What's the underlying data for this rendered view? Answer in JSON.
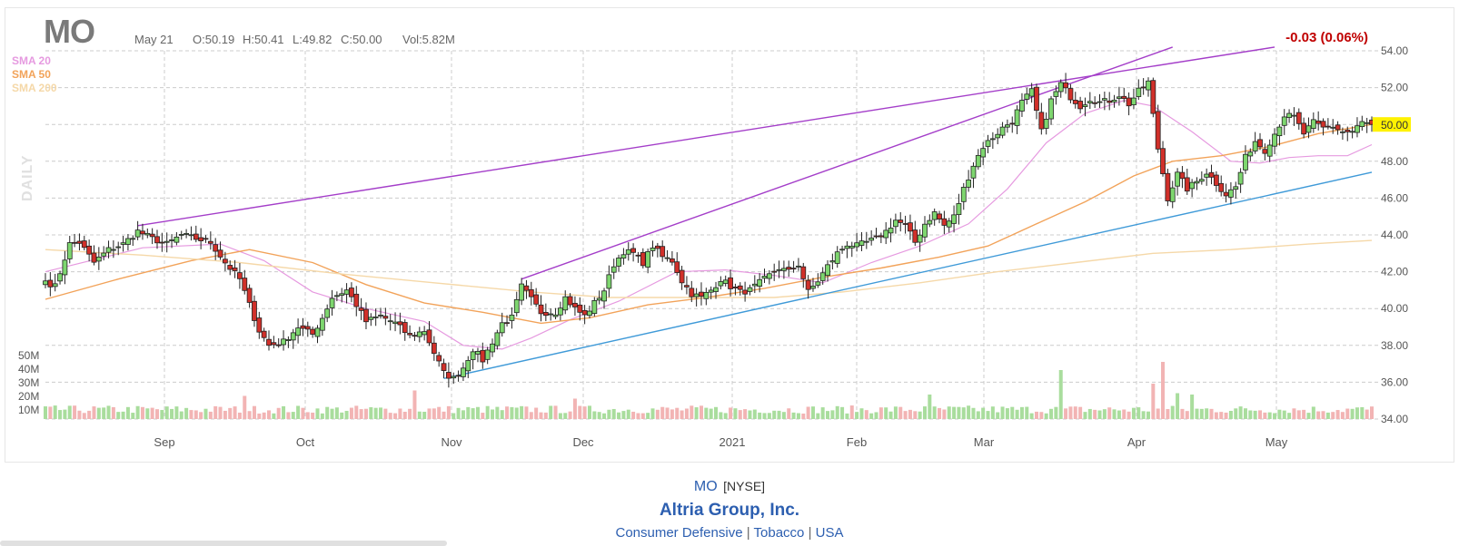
{
  "header": {
    "ticker": "MO",
    "date": "May 21",
    "open": "O:50.19",
    "high": "H:50.41",
    "low": "L:49.82",
    "close": "C:50.00",
    "volume": "Vol:5.82M",
    "change": "-0.03 (0.06%)",
    "timeframe": "DAILY"
  },
  "legend": [
    {
      "label": "SMA 20",
      "color": "#e69ae0"
    },
    {
      "label": "SMA 50",
      "color": "#f2a35a"
    },
    {
      "label": "SMA 200",
      "color": "#f5d8a8"
    }
  ],
  "footer": {
    "symbol": "MO",
    "exchange": "[NYSE]",
    "company": "Altria Group, Inc.",
    "sector": "Consumer Defensive",
    "industry": "Tobacco",
    "country": "USA",
    "separator": "|"
  },
  "colors": {
    "up": "#7ed66f",
    "down": "#d1302a",
    "vol_up": "#a9dd9d",
    "vol_down": "#f2b4b4",
    "trendline_purple": "#a43ec9",
    "trendline_blue": "#3f9ad8",
    "grid": "#cccccc",
    "last_price_bg": "#fff200"
  },
  "chart_data": {
    "type": "candlestick",
    "y_axis_ticks": [
      "54.00",
      "52.00",
      "50.00",
      "48.00",
      "46.00",
      "44.00",
      "42.00",
      "40.00",
      "38.00",
      "36.00",
      "34.00"
    ],
    "ylim": [
      34,
      54
    ],
    "volume_ticks": [
      "50M",
      "40M",
      "30M",
      "20M",
      "10M"
    ],
    "x_axis_ticks": [
      {
        "label": "Sep",
        "date": "2020-09-01"
      },
      {
        "label": "Oct",
        "date": "2020-10-01"
      },
      {
        "label": "Nov",
        "date": "2020-11-02"
      },
      {
        "label": "Dec",
        "date": "2020-12-01"
      },
      {
        "label": "2021",
        "date": "2021-01-04"
      },
      {
        "label": "Feb",
        "date": "2021-02-01"
      },
      {
        "label": "Mar",
        "date": "2021-03-01"
      },
      {
        "label": "Apr",
        "date": "2021-04-01"
      },
      {
        "label": "May",
        "date": "2021-05-03"
      }
    ],
    "last_price": "50.00",
    "close_path": [
      [
        0,
        41.5
      ],
      [
        2,
        41.2
      ],
      [
        5,
        43.5
      ],
      [
        7,
        43.6
      ],
      [
        10,
        42.5
      ],
      [
        13,
        43.2
      ],
      [
        16,
        43.5
      ],
      [
        19,
        44.2
      ],
      [
        22,
        43.8
      ],
      [
        25,
        43.5
      ],
      [
        28,
        44.0
      ],
      [
        31,
        43.8
      ],
      [
        34,
        43.6
      ],
      [
        37,
        42.5
      ],
      [
        40,
        41.6
      ],
      [
        42,
        40.2
      ],
      [
        44,
        38.8
      ],
      [
        46,
        38.0
      ],
      [
        49,
        38.2
      ],
      [
        52,
        39.0
      ],
      [
        55,
        38.6
      ],
      [
        57,
        39.5
      ],
      [
        59,
        40.6
      ],
      [
        62,
        41.0
      ],
      [
        64,
        40.2
      ],
      [
        66,
        39.3
      ],
      [
        69,
        39.6
      ],
      [
        72,
        39.2
      ],
      [
        75,
        38.5
      ],
      [
        78,
        38.8
      ],
      [
        80,
        37.6
      ],
      [
        82,
        36.5
      ],
      [
        84,
        36.2
      ],
      [
        86,
        36.8
      ],
      [
        88,
        37.8
      ],
      [
        90,
        37.2
      ],
      [
        92,
        38.2
      ],
      [
        94,
        39.2
      ],
      [
        96,
        39.5
      ],
      [
        98,
        41.2
      ],
      [
        100,
        40.5
      ],
      [
        102,
        39.8
      ],
      [
        105,
        39.8
      ],
      [
        107,
        40.6
      ],
      [
        109,
        40.0
      ],
      [
        111,
        39.6
      ],
      [
        113,
        40.3
      ],
      [
        115,
        41.0
      ],
      [
        117,
        42.4
      ],
      [
        119,
        43.1
      ],
      [
        121,
        43.0
      ],
      [
        123,
        42.5
      ],
      [
        125,
        43.4
      ],
      [
        127,
        42.8
      ],
      [
        129,
        42.6
      ],
      [
        131,
        41.5
      ],
      [
        133,
        40.8
      ],
      [
        135,
        40.6
      ],
      [
        137,
        41.0
      ],
      [
        139,
        41.6
      ],
      [
        141,
        41.2
      ],
      [
        143,
        40.9
      ],
      [
        145,
        41.0
      ],
      [
        147,
        41.4
      ],
      [
        149,
        41.8
      ],
      [
        151,
        42.2
      ],
      [
        153,
        42.0
      ],
      [
        155,
        42.4
      ],
      [
        157,
        40.9
      ],
      [
        159,
        41.5
      ],
      [
        161,
        42.3
      ],
      [
        163,
        43.0
      ],
      [
        165,
        43.5
      ],
      [
        167,
        43.4
      ],
      [
        169,
        43.6
      ],
      [
        171,
        43.8
      ],
      [
        173,
        44.2
      ],
      [
        175,
        44.8
      ],
      [
        177,
        44.5
      ],
      [
        179,
        43.6
      ],
      [
        181,
        44.6
      ],
      [
        183,
        45.2
      ],
      [
        185,
        44.5
      ],
      [
        187,
        45.0
      ],
      [
        189,
        46.5
      ],
      [
        191,
        47.8
      ],
      [
        193,
        48.8
      ],
      [
        195,
        49.3
      ],
      [
        197,
        49.8
      ],
      [
        199,
        50.2
      ],
      [
        201,
        51.2
      ],
      [
        203,
        51.8
      ],
      [
        205,
        49.6
      ],
      [
        207,
        51.3
      ],
      [
        209,
        52.2
      ],
      [
        211,
        51.5
      ],
      [
        213,
        51.0
      ],
      [
        215,
        51.4
      ],
      [
        217,
        51.2
      ],
      [
        219,
        51.3
      ],
      [
        221,
        51.6
      ],
      [
        223,
        51.1
      ],
      [
        225,
        51.8
      ],
      [
        227,
        52.3
      ],
      [
        229,
        48.7
      ],
      [
        231,
        46.0
      ],
      [
        233,
        47.3
      ],
      [
        235,
        46.5
      ],
      [
        237,
        46.9
      ],
      [
        239,
        47.4
      ],
      [
        241,
        46.8
      ],
      [
        243,
        46.2
      ],
      [
        245,
        46.6
      ],
      [
        247,
        48.2
      ],
      [
        249,
        49.1
      ],
      [
        251,
        48.6
      ],
      [
        253,
        49.5
      ],
      [
        255,
        50.5
      ],
      [
        257,
        50.4
      ],
      [
        259,
        49.5
      ],
      [
        261,
        50.1
      ],
      [
        263,
        49.8
      ],
      [
        265,
        49.9
      ],
      [
        267,
        49.6
      ],
      [
        269,
        49.6
      ],
      [
        271,
        50.1
      ],
      [
        273,
        50.0
      ]
    ],
    "sma20_path": [
      [
        0,
        42.0
      ],
      [
        20,
        43.3
      ],
      [
        36,
        43.5
      ],
      [
        45,
        42.6
      ],
      [
        55,
        40.9
      ],
      [
        66,
        40.0
      ],
      [
        78,
        39.3
      ],
      [
        86,
        38.0
      ],
      [
        94,
        37.8
      ],
      [
        100,
        38.4
      ],
      [
        108,
        39.4
      ],
      [
        118,
        40.4
      ],
      [
        130,
        42.0
      ],
      [
        140,
        42.1
      ],
      [
        150,
        41.8
      ],
      [
        160,
        41.4
      ],
      [
        170,
        42.5
      ],
      [
        180,
        43.4
      ],
      [
        190,
        44.6
      ],
      [
        198,
        46.5
      ],
      [
        206,
        49.0
      ],
      [
        214,
        50.6
      ],
      [
        222,
        51.3
      ],
      [
        228,
        51.0
      ],
      [
        236,
        49.6
      ],
      [
        244,
        48.0
      ],
      [
        250,
        47.9
      ],
      [
        256,
        48.2
      ],
      [
        262,
        48.3
      ],
      [
        268,
        48.3
      ],
      [
        273,
        48.9
      ]
    ],
    "sma50_path": [
      [
        0,
        40.5
      ],
      [
        15,
        41.6
      ],
      [
        30,
        42.6
      ],
      [
        42,
        43.2
      ],
      [
        55,
        42.5
      ],
      [
        66,
        41.3
      ],
      [
        78,
        40.3
      ],
      [
        90,
        39.8
      ],
      [
        102,
        39.2
      ],
      [
        112,
        39.5
      ],
      [
        124,
        40.2
      ],
      [
        136,
        40.6
      ],
      [
        148,
        41.1
      ],
      [
        160,
        41.7
      ],
      [
        172,
        42.2
      ],
      [
        184,
        42.8
      ],
      [
        194,
        43.4
      ],
      [
        204,
        44.6
      ],
      [
        214,
        45.8
      ],
      [
        224,
        47.2
      ],
      [
        232,
        48.0
      ],
      [
        242,
        48.3
      ],
      [
        252,
        48.8
      ],
      [
        262,
        49.5
      ],
      [
        273,
        50.0
      ]
    ],
    "sma200_path": [
      [
        0,
        43.2
      ],
      [
        20,
        42.9
      ],
      [
        40,
        42.5
      ],
      [
        60,
        41.9
      ],
      [
        80,
        41.4
      ],
      [
        100,
        40.9
      ],
      [
        116,
        40.6
      ],
      [
        132,
        40.6
      ],
      [
        150,
        40.6
      ],
      [
        164,
        40.9
      ],
      [
        180,
        41.4
      ],
      [
        196,
        42.0
      ],
      [
        212,
        42.5
      ],
      [
        228,
        43.0
      ],
      [
        244,
        43.2
      ],
      [
        260,
        43.5
      ],
      [
        273,
        43.7
      ]
    ],
    "trendlines": [
      {
        "color": "purple",
        "from": [
          19,
          44.5
        ],
        "to": [
          253,
          54.2
        ]
      },
      {
        "color": "purple",
        "from": [
          98,
          41.6
        ],
        "to": [
          232,
          54.2
        ]
      },
      {
        "color": "blue",
        "from": [
          82,
          36.2
        ],
        "to": [
          273,
          47.4
        ]
      }
    ],
    "volume_spikes": [
      [
        41,
        17
      ],
      [
        76,
        21
      ],
      [
        109,
        15
      ],
      [
        209,
        36
      ],
      [
        228,
        26
      ],
      [
        230,
        42
      ],
      [
        233,
        19
      ],
      [
        236,
        18
      ],
      [
        182,
        18
      ]
    ]
  }
}
